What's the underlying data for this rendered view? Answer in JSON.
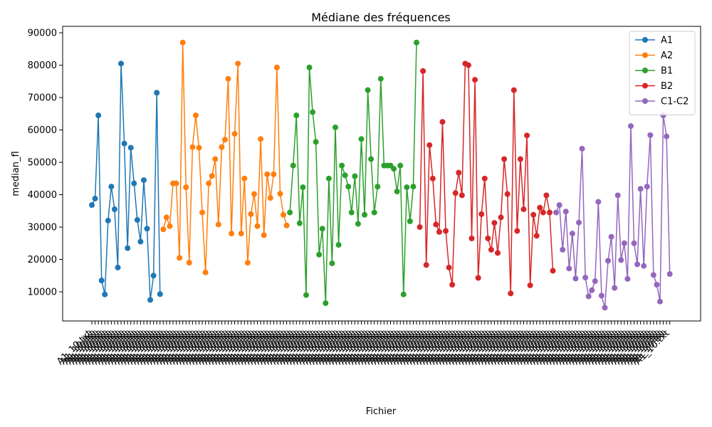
{
  "chart_data": {
    "type": "line",
    "title": "Médiane des fréquences",
    "xlabel": "Fichier",
    "ylabel": "median_fl",
    "ylim": [
      1000,
      92000
    ],
    "yticks": [
      10000,
      20000,
      30000,
      40000,
      50000,
      60000,
      70000,
      80000,
      90000
    ],
    "ytick_labels": [
      "10000",
      "20000",
      "30000",
      "40000",
      "50000",
      "60000",
      "70000",
      "80000",
      "90000"
    ],
    "xtick_labels_note": "A1_10.txt",
    "legend": "top-right",
    "grid": false,
    "series": [
      {
        "name": "A1",
        "color": "#1f77b4",
        "values": [
          36800,
          38800,
          64500,
          13500,
          9200,
          32000,
          42500,
          35500,
          17500,
          80500,
          55800,
          23500,
          54500,
          43500,
          32200,
          25500,
          44500,
          29500,
          7500,
          15000,
          71500,
          9300
        ]
      },
      {
        "name": "A2",
        "color": "#ff7f0e",
        "values": [
          29300,
          33000,
          30300,
          43500,
          43500,
          20500,
          87000,
          42300,
          19000,
          54700,
          64500,
          54500,
          34500,
          16000,
          43500,
          45800,
          51000,
          30800,
          54700,
          57000,
          75800,
          28000,
          58800,
          80500,
          28000,
          45000,
          19000,
          34000,
          40200,
          30300,
          57200,
          27500,
          46300,
          39000,
          46300,
          79300,
          40300,
          33800,
          30500
        ]
      },
      {
        "name": "B1",
        "color": "#2ca02c",
        "values": [
          34500,
          49000,
          64500,
          31200,
          42300,
          9000,
          79300,
          65500,
          56300,
          21500,
          29500,
          6500,
          45000,
          18800,
          60800,
          24500,
          49000,
          46000,
          42500,
          34500,
          45700,
          31000,
          57200,
          33800,
          72300,
          51000,
          34500,
          42500,
          75800,
          49000,
          49000,
          49000,
          48000,
          41000,
          49000,
          9200,
          42300,
          31800,
          42500,
          87000
        ]
      },
      {
        "name": "B2",
        "color": "#d62728",
        "values": [
          30000,
          78200,
          18300,
          55300,
          45000,
          30800,
          28500,
          62500,
          28800,
          17500,
          12200,
          40500,
          46800,
          39800,
          80500,
          80000,
          26500,
          75500,
          14300,
          34000,
          45000,
          26500,
          23000,
          31300,
          22000,
          33000,
          51000,
          40200,
          9500,
          72300,
          28800,
          51000,
          35500,
          58300,
          12000,
          33800,
          27300,
          36000,
          34500,
          39800,
          34500,
          16500
        ]
      },
      {
        "name": "C1-C2",
        "color": "#9467bd",
        "values": [
          34500,
          36800,
          23000,
          34800,
          17200,
          28000,
          14100,
          31400,
          54200,
          14400,
          8600,
          10500,
          13300,
          37800,
          8800,
          5100,
          19600,
          27000,
          11200,
          39800,
          19800,
          25000,
          14000,
          61200,
          25000,
          18500,
          41800,
          18000,
          42500,
          58400,
          15200,
          12200,
          7000,
          64500,
          58000,
          15500
        ]
      }
    ]
  }
}
